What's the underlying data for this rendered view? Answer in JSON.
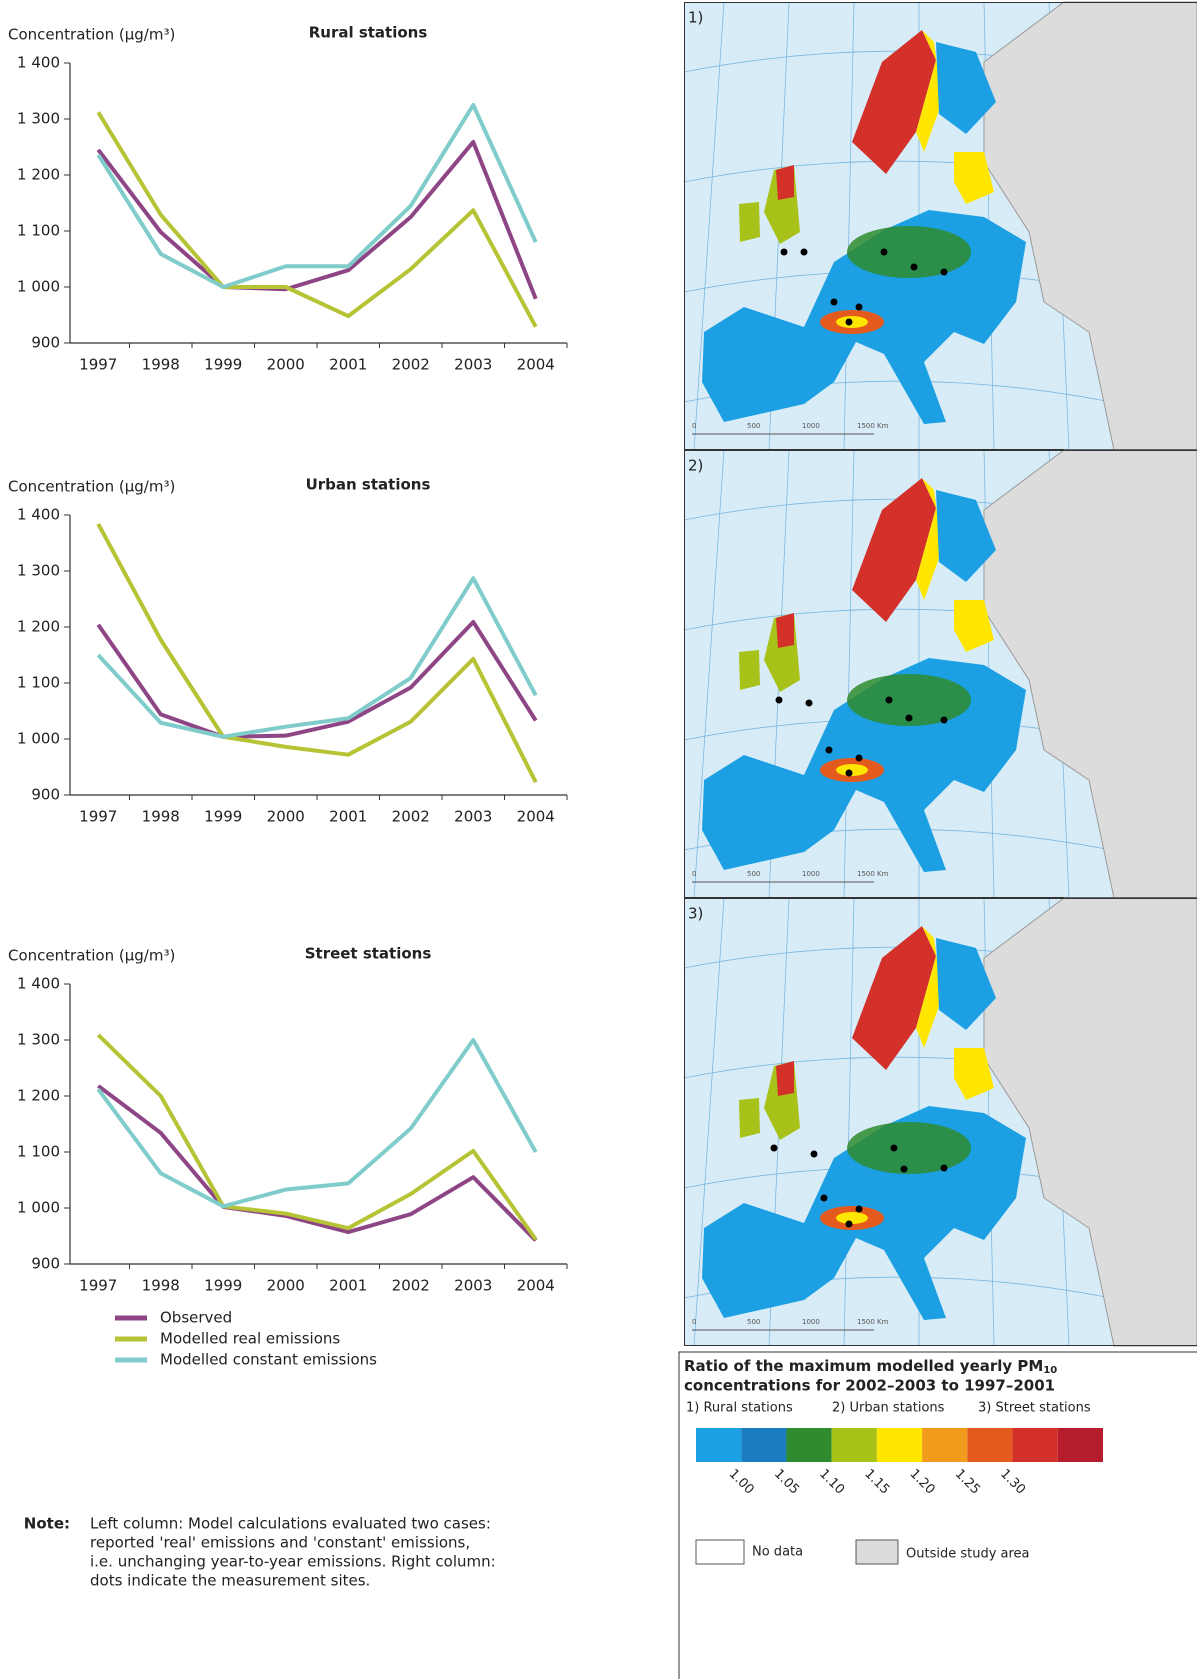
{
  "chart_data": [
    {
      "type": "line",
      "title": "Rural stations",
      "y_label": "Concentration (µg/m³)",
      "categories": [
        "1997",
        "1998",
        "1999",
        "2000",
        "2001",
        "2002",
        "2003",
        "2004"
      ],
      "series": [
        {
          "name": "Observed",
          "color": "#8e4585",
          "values": [
            1245,
            1098,
            1000,
            996,
            1030,
            1125,
            1259,
            979
          ]
        },
        {
          "name": "Modelled real emissions",
          "color": "#b5c334",
          "values": [
            1312,
            1129,
            1000,
            1000,
            948,
            1032,
            1137,
            929
          ]
        },
        {
          "name": "Modelled constant emissions",
          "color": "#7fcccb",
          "values": [
            1236,
            1059,
            1000,
            1037,
            1037,
            1145,
            1325,
            1080
          ]
        }
      ],
      "ylim": [
        900,
        1400
      ],
      "yticks": [
        900,
        {
          "value": 1000,
          "label": "1 000"
        },
        {
          "value": 1100,
          "label": "1 100"
        },
        {
          "value": 1200,
          "label": "1 200"
        },
        {
          "value": 1300,
          "label": "1 300"
        },
        {
          "value": 1400,
          "label": "1 400"
        }
      ]
    },
    {
      "type": "line",
      "title": "Urban stations",
      "y_label": "Concentration (µg/m³)",
      "categories": [
        "1997",
        "1998",
        "1999",
        "2000",
        "2001",
        "2002",
        "2003",
        "2004"
      ],
      "series": [
        {
          "name": "Observed",
          "color": "#8e4585",
          "values": [
            1204,
            1044,
            1004,
            1006,
            1031,
            1092,
            1209,
            1033
          ]
        },
        {
          "name": "Modelled real emissions",
          "color": "#b5c334",
          "values": [
            1384,
            1177,
            1004,
            986,
            972,
            1031,
            1143,
            923
          ]
        },
        {
          "name": "Modelled constant emissions",
          "color": "#7fcccb",
          "values": [
            1150,
            1029,
            1004,
            1022,
            1037,
            1109,
            1287,
            1078
          ]
        }
      ],
      "ylim": [
        900,
        1400
      ],
      "yticks": [
        900,
        {
          "value": 1000,
          "label": "1 000"
        },
        {
          "value": 1100,
          "label": "1 100"
        },
        {
          "value": 1200,
          "label": "1 200"
        },
        {
          "value": 1300,
          "label": "1 300"
        },
        {
          "value": 1400,
          "label": "1 400"
        }
      ]
    },
    {
      "type": "line",
      "title": "Street stations",
      "y_label": "Concentration (µg/m³)",
      "categories": [
        "1997",
        "1998",
        "1999",
        "2000",
        "2001",
        "2002",
        "2003",
        "2004"
      ],
      "series": [
        {
          "name": "Observed",
          "color": "#8e4585",
          "values": [
            1218,
            1134,
            1002,
            986,
            957,
            989,
            1055,
            942
          ]
        },
        {
          "name": "Modelled real emissions",
          "color": "#b5c334",
          "values": [
            1309,
            1200,
            1003,
            990,
            964,
            1025,
            1102,
            944
          ]
        },
        {
          "name": "Modelled constant emissions",
          "color": "#7fcccb",
          "values": [
            1212,
            1062,
            1003,
            1033,
            1044,
            1142,
            1300,
            1100
          ]
        }
      ],
      "ylim": [
        900,
        1400
      ],
      "yticks": [
        900,
        {
          "value": 1000,
          "label": "1 000"
        },
        {
          "value": 1100,
          "label": "1 100"
        },
        {
          "value": 1200,
          "label": "1 200"
        },
        {
          "value": 1300,
          "label": "1 300"
        },
        {
          "value": 1400,
          "label": "1 400"
        }
      ]
    }
  ],
  "maps": {
    "labels": [
      "1)",
      "2)",
      "3)"
    ],
    "scale": [
      "0",
      "500",
      "1000",
      "1500 Km"
    ]
  },
  "map_legend": {
    "title_start": "Ratio of the maximum modelled yearly PM",
    "title_sub": "10",
    "title_end": "concentrations for 2002–2003 to 1997–2001",
    "stations": [
      "1) Rural stations",
      "2) Urban stations",
      "3) Street stations"
    ],
    "colors": [
      "#1ca0e3",
      "#1a7dbf",
      "#2e8b2e",
      "#a9c21a",
      "#ffe600",
      "#f29a1c",
      "#e45a1e",
      "#d3302a",
      "#b51c2c"
    ],
    "range": [
      0.95,
      1.4
    ],
    "ticks": [
      {
        "value": 1,
        "label": "1.00"
      },
      {
        "value": 1.05,
        "label": "1.05"
      },
      {
        "value": 1.1,
        "label": "1.10"
      },
      {
        "value": 1.15,
        "label": "1.15"
      },
      {
        "value": 1.2,
        "label": "1.20"
      },
      {
        "value": 1.25,
        "label": "1.25"
      },
      {
        "value": 1.3,
        "label": "1.30"
      }
    ],
    "no_data": "No data",
    "outside": "Outside study area"
  },
  "note": {
    "label": "Note:",
    "lines": [
      "Left column: Model calculations evaluated two cases:",
      "reported 'real' emissions and 'constant' emissions,",
      "i.e. unchanging year-to-year emissions. Right column:",
      "dots indicate the measurement sites."
    ]
  }
}
